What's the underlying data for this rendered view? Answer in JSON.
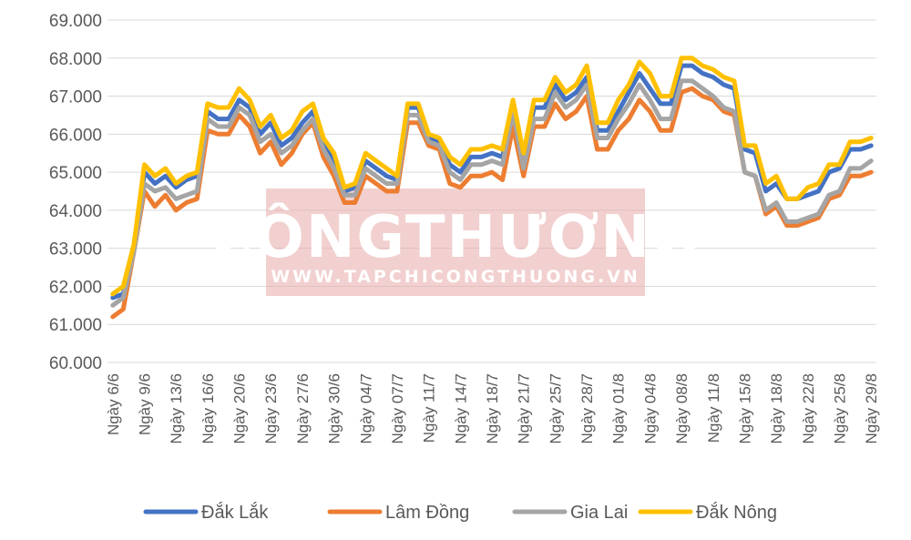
{
  "chart_data": {
    "type": "line",
    "title": "",
    "xlabel": "",
    "ylabel": "",
    "ylim": [
      60000,
      69000
    ],
    "y_ticks": [
      "60.000",
      "61.000",
      "62.000",
      "63.000",
      "64.000",
      "65.000",
      "66.000",
      "67.000",
      "68.000",
      "69.000"
    ],
    "y_tick_values": [
      60000,
      61000,
      62000,
      63000,
      64000,
      65000,
      66000,
      67000,
      68000,
      69000
    ],
    "grid": true,
    "legend_position": "bottom",
    "x_tick_labels": [
      "Ngày 6/6",
      "Ngày 9/6",
      "Ngày 13/6",
      "Ngày 16/6",
      "Ngày 20/6",
      "Ngày 23/6",
      "Ngày 27/6",
      "Ngày 30/6",
      "Ngày 04/7",
      "Ngày 07/7",
      "Ngày 11/7",
      "Ngày 14/7",
      "Ngày 18/7",
      "Ngày 21/7",
      "Ngày 25/7",
      "Ngày 28/7",
      "Ngày 01/8",
      "Ngày 04/8",
      "Ngày 08/8",
      "Ngày 11/8",
      "Ngày 15/8",
      "Ngày 18/8",
      "Ngày 22/8",
      "Ngày 25/8",
      "Ngày 29/8"
    ],
    "series": [
      {
        "name": "Đắk Lắk",
        "color": "#4472C4",
        "values": [
          61700,
          61800,
          63000,
          65000,
          64700,
          64900,
          64600,
          64800,
          64900,
          66600,
          66400,
          66400,
          66900,
          66700,
          66000,
          66300,
          65700,
          65900,
          66300,
          66600,
          65800,
          65300,
          64500,
          64600,
          65300,
          65100,
          64900,
          64800,
          66700,
          66700,
          65900,
          65800,
          65200,
          65000,
          65400,
          65400,
          65500,
          65400,
          66800,
          65300,
          66700,
          66700,
          67300,
          66900,
          67100,
          67500,
          66100,
          66100,
          66600,
          67100,
          67600,
          67200,
          66800,
          66800,
          67800,
          67800,
          67600,
          67500,
          67300,
          67200,
          65600,
          65500,
          64500,
          64700,
          64300,
          64300,
          64400,
          64500,
          65000,
          65100,
          65600,
          65600,
          65700
        ]
      },
      {
        "name": "Lâm Đồng",
        "color": "#ED7D31",
        "values": [
          61200,
          61400,
          62900,
          64500,
          64100,
          64400,
          64000,
          64200,
          64300,
          66100,
          66000,
          66000,
          66500,
          66200,
          65500,
          65800,
          65200,
          65500,
          66000,
          66300,
          65400,
          64900,
          64200,
          64200,
          64900,
          64700,
          64500,
          64500,
          66300,
          66300,
          65700,
          65600,
          64700,
          64600,
          64900,
          64900,
          65000,
          64800,
          66200,
          64900,
          66200,
          66200,
          66800,
          66400,
          66600,
          67000,
          65600,
          65600,
          66100,
          66400,
          66900,
          66600,
          66100,
          66100,
          67100,
          67200,
          67000,
          66900,
          66600,
          66500,
          65000,
          64900,
          63900,
          64100,
          63600,
          63600,
          63700,
          63800,
          64300,
          64400,
          64900,
          64900,
          65000
        ]
      },
      {
        "name": "Gia Lai",
        "color": "#A5A5A5",
        "values": [
          61500,
          61700,
          62900,
          64700,
          64500,
          64600,
          64300,
          64400,
          64500,
          66400,
          66200,
          66200,
          66700,
          66500,
          65800,
          66000,
          65500,
          65700,
          66100,
          66400,
          65600,
          65100,
          64400,
          64400,
          65100,
          64900,
          64700,
          64700,
          66500,
          66500,
          65800,
          65700,
          65000,
          64800,
          65200,
          65200,
          65300,
          65200,
          66600,
          65100,
          66400,
          66400,
          67100,
          66700,
          66900,
          67300,
          65900,
          65900,
          66400,
          66800,
          67300,
          66900,
          66400,
          66400,
          67400,
          67400,
          67200,
          67000,
          66700,
          66600,
          65000,
          64900,
          64000,
          64200,
          63700,
          63700,
          63800,
          63900,
          64400,
          64500,
          65100,
          65100,
          65300
        ]
      },
      {
        "name": "Đắk Nông",
        "color": "#FFC000",
        "values": [
          61800,
          62000,
          63100,
          65200,
          64900,
          65100,
          64700,
          64900,
          65000,
          66800,
          66700,
          66700,
          67200,
          66900,
          66200,
          66500,
          65900,
          66100,
          66600,
          66800,
          65900,
          65500,
          64600,
          64700,
          65500,
          65300,
          65100,
          64900,
          66800,
          66800,
          66000,
          65900,
          65400,
          65200,
          65600,
          65600,
          65700,
          65600,
          66900,
          65500,
          66900,
          66900,
          67500,
          67100,
          67300,
          67800,
          66300,
          66300,
          66900,
          67300,
          67900,
          67600,
          67000,
          67000,
          68000,
          68000,
          67800,
          67700,
          67500,
          67400,
          65700,
          65700,
          64700,
          64900,
          64300,
          64300,
          64600,
          64700,
          65200,
          65200,
          65800,
          65800,
          65900
        ]
      }
    ]
  },
  "watermark": {
    "brand": "CÔNGTHƯƠNG",
    "url": "WWW.TAPCHICONGTHUONG.VN"
  }
}
